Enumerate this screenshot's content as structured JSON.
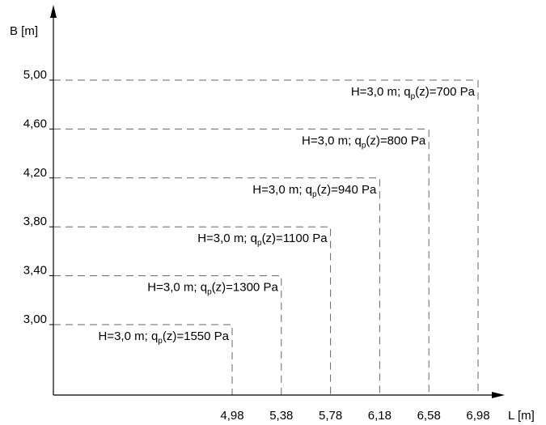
{
  "chart_data": {
    "type": "line",
    "xlabel": "L [m]",
    "ylabel": "B [m]",
    "x_ticks": [
      "4,98",
      "5,38",
      "5,78",
      "6,18",
      "6,58",
      "6,98"
    ],
    "y_ticks": [
      "3,00",
      "3,40",
      "3,80",
      "4,20",
      "4,60",
      "5,00"
    ],
    "series": [
      {
        "L": 4.98,
        "B": 3.0,
        "label": {
          "pre": "H=3,0 m; q",
          "sub": "p",
          "post": "(z)=1550 Pa"
        }
      },
      {
        "L": 5.38,
        "B": 3.4,
        "label": {
          "pre": "H=3,0 m; q",
          "sub": "p",
          "post": "(z)=1300 Pa"
        }
      },
      {
        "L": 5.78,
        "B": 3.8,
        "label": {
          "pre": "H=3,0 m;  q",
          "sub": "p",
          "post": "(z)=1100 Pa"
        }
      },
      {
        "L": 6.18,
        "B": 4.2,
        "label": {
          "pre": "H=3,0 m; q",
          "sub": "p",
          "post": "(z)=940 Pa"
        }
      },
      {
        "L": 6.58,
        "B": 4.6,
        "label": {
          "pre": "H=3,0 m; q",
          "sub": "p",
          "post": "(z)=800 Pa"
        }
      },
      {
        "L": 6.98,
        "B": 5.0,
        "label": {
          "pre": "H=3,0 m; q",
          "sub": "p",
          "post": "(z)=700 Pa"
        }
      }
    ],
    "grid": false,
    "legend": "none"
  }
}
